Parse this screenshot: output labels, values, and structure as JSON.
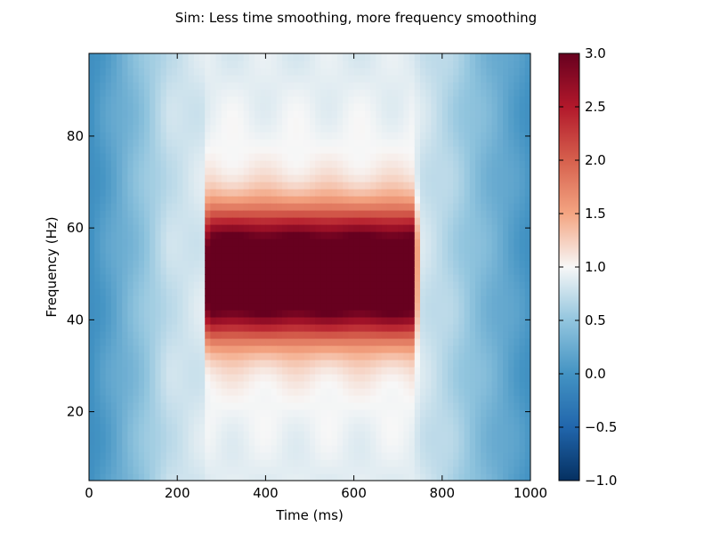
{
  "chart_data": {
    "type": "heatmap",
    "title": "Sim: Less time smoothing, more frequency smoothing",
    "xlabel": "Time (ms)",
    "ylabel": "Frequency (Hz)",
    "xlim": [
      0,
      1000
    ],
    "ylim": [
      5,
      98
    ],
    "x_ticks": [
      0,
      200,
      400,
      600,
      800,
      1000
    ],
    "x_tick_labels": [
      "0",
      "200",
      "400",
      "600",
      "800",
      "1000"
    ],
    "y_ticks": [
      20,
      40,
      60,
      80
    ],
    "y_tick_labels": [
      "20",
      "40",
      "60",
      "80"
    ],
    "grid": false,
    "colormap": "RdBu_r",
    "colorbar": {
      "min": -1.0,
      "max": 3.0,
      "ticks": [
        3.0,
        2.5,
        2.0,
        1.5,
        1.0,
        0.5,
        0.0,
        -0.5,
        -1.0
      ],
      "tick_labels": [
        "3.0",
        "2.5",
        "2.0",
        "1.5",
        "1.0",
        "0.5",
        "0.0",
        "−0.5",
        "−1.0"
      ]
    },
    "colormap_stops": [
      {
        "value": -1.0,
        "color": "#053061"
      },
      {
        "value": -0.5,
        "color": "#2166ac"
      },
      {
        "value": 0.0,
        "color": "#4393c3"
      },
      {
        "value": 0.5,
        "color": "#92c5de"
      },
      {
        "value": 1.0,
        "color": "#f7f7f7"
      },
      {
        "value": 1.5,
        "color": "#f4a582"
      },
      {
        "value": 2.0,
        "color": "#d6604d"
      },
      {
        "value": 2.5,
        "color": "#b2182b"
      },
      {
        "value": 3.0,
        "color": "#67001f"
      }
    ],
    "regions": {
      "background": 0.55,
      "edge_ramp": [
        {
          "time_ms": 0,
          "value": -0.05
        },
        {
          "time_ms": 60,
          "value": 0.2
        },
        {
          "time_ms": 180,
          "value": 0.75
        },
        {
          "time_ms": 260,
          "value": 0.85
        },
        {
          "time_ms": 740,
          "value": 0.85
        },
        {
          "time_ms": 820,
          "value": 0.65
        },
        {
          "time_ms": 900,
          "value": 0.35
        },
        {
          "time_ms": 1000,
          "value": 0.0
        }
      ],
      "activation": {
        "time_start_ms": 270,
        "time_end_ms": 735,
        "freq_center_hz": 50,
        "peak_value": 3.0,
        "core_half_width_hz": 5,
        "sigma_hz": 6.5
      }
    }
  }
}
